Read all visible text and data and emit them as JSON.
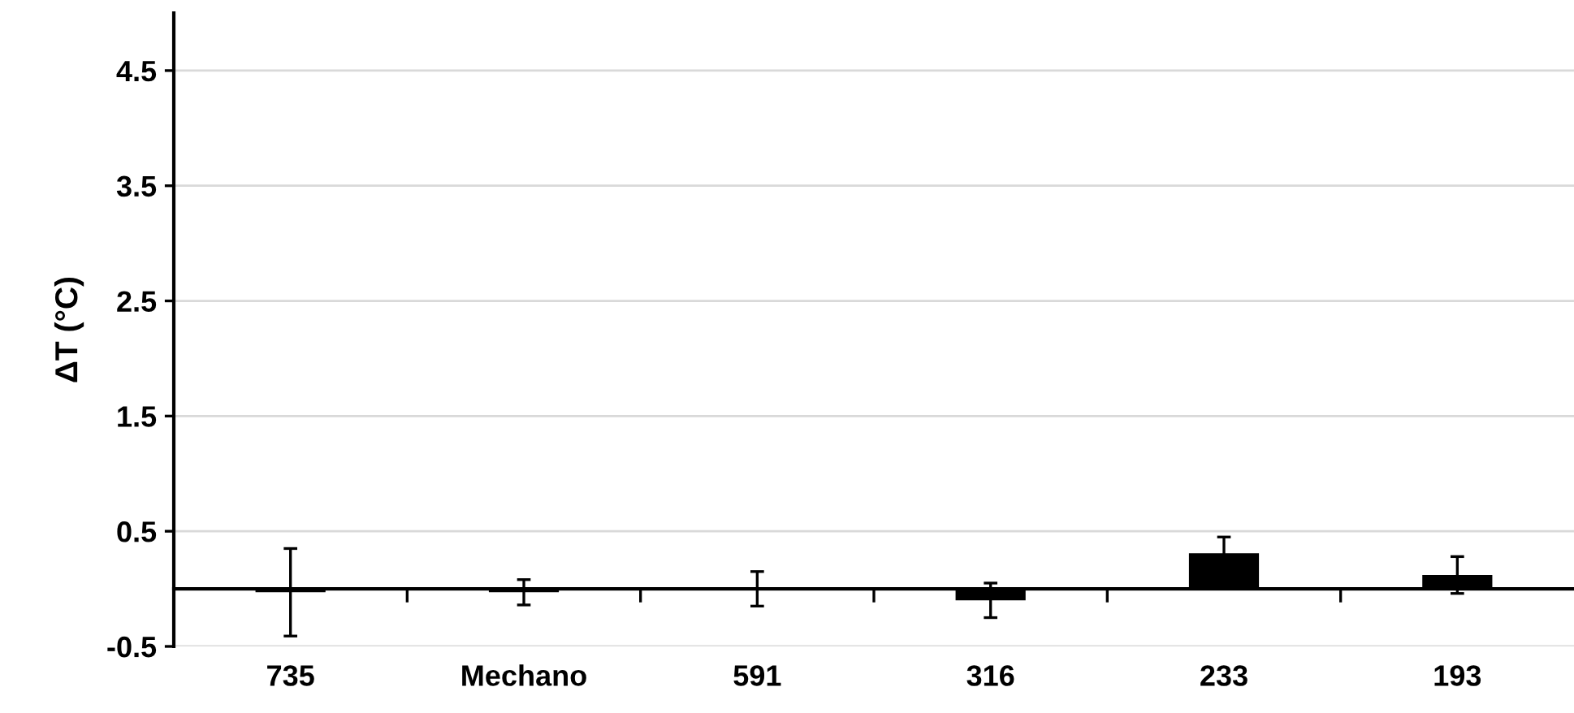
{
  "chart_data": {
    "type": "bar",
    "ylabel": "ΔT (°C)",
    "categories": [
      "735",
      "Mechano",
      "591",
      "316",
      "233",
      "193"
    ],
    "values": [
      -0.03,
      -0.03,
      0,
      -0.1,
      0.31,
      0.12
    ],
    "errors": [
      0.38,
      0.11,
      0.15,
      0.15,
      0.14,
      0.16
    ],
    "color": "#000000",
    "ylim": [
      -0.5,
      5
    ],
    "yticks": [
      -0.5,
      0.5,
      1.5,
      2.5,
      3.5,
      4.5
    ],
    "grid": "y"
  }
}
